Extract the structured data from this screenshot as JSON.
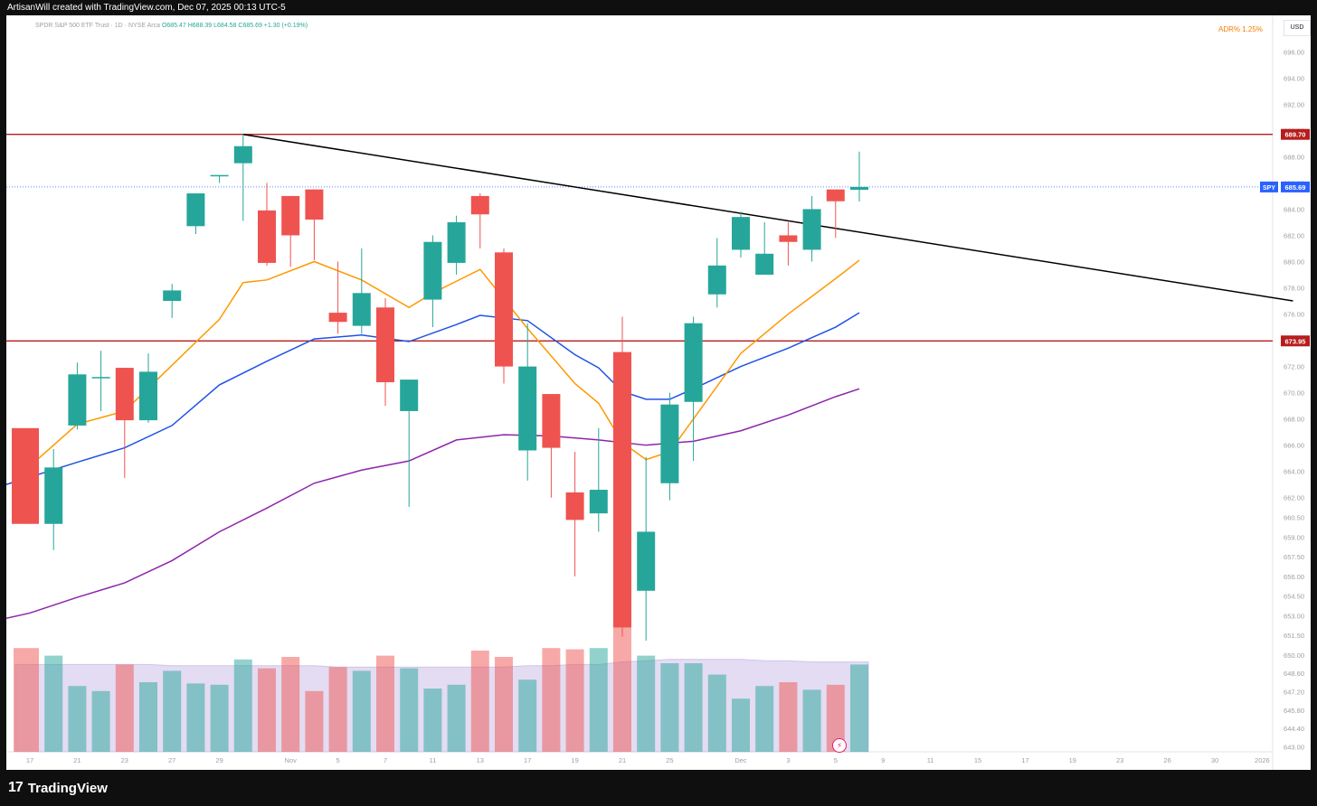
{
  "header": {
    "attribution": "ArtisanWill created with TradingView.com, Dec 07, 2025 00:13 UTC-5"
  },
  "legend": {
    "symbol": "SPDR S&P 500 ETF Trust · 1D · NYSE Arca",
    "ohlc": "O685.47 H688.39 L684.58 C685.69 +1.30 (+0.19%)"
  },
  "adr": "ADR%  1.25%",
  "currency": "USD",
  "branding": {
    "logo_mark": "17",
    "logo_text": "TradingView"
  },
  "colors": {
    "up": "#26a69a",
    "down": "#ef5350",
    "ema_short": "#ff9800",
    "ema_mid": "#1e53e5",
    "sma_long": "#8e24aa",
    "level": "#b71c1c",
    "trendline": "#000000",
    "volume_ma": "#d1c4e9"
  },
  "chart_data": {
    "type": "candlestick",
    "symbol": "SPY",
    "timeframe": "1D",
    "ylim": [
      643.0,
      697.5
    ],
    "yticks": [
      696.0,
      694.0,
      692.0,
      690.0,
      688.0,
      686.0,
      684.0,
      682.0,
      680.0,
      678.0,
      676.0,
      674.0,
      672.0,
      670.0,
      668.0,
      666.0,
      664.0,
      662.0,
      660.5,
      659.0,
      657.5,
      656.0,
      654.5,
      653.0,
      651.5,
      650.0,
      648.6,
      647.2,
      645.8,
      644.4,
      643.0
    ],
    "ytick_labels": [
      "696.00",
      "694.00",
      "692.00",
      "690.00",
      "688.00",
      "686.00",
      "684.00",
      "682.00",
      "680.00",
      "678.00",
      "676.00",
      "674.00",
      "672.00",
      "670.00",
      "668.00",
      "666.00",
      "664.00",
      "662.00",
      "660.50",
      "659.00",
      "657.50",
      "656.00",
      "654.50",
      "653.00",
      "651.50",
      "650.00",
      "648.60",
      "647.20",
      "645.80",
      "644.40",
      "643.00"
    ],
    "x_tick_labels": [
      {
        "label": "17",
        "slot": 0
      },
      {
        "label": "21",
        "slot": 2
      },
      {
        "label": "23",
        "slot": 4
      },
      {
        "label": "27",
        "slot": 6
      },
      {
        "label": "29",
        "slot": 8
      },
      {
        "label": "Nov",
        "slot": 11
      },
      {
        "label": "5",
        "slot": 13
      },
      {
        "label": "7",
        "slot": 15
      },
      {
        "label": "11",
        "slot": 17
      },
      {
        "label": "13",
        "slot": 19
      },
      {
        "label": "17",
        "slot": 21
      },
      {
        "label": "19",
        "slot": 23
      },
      {
        "label": "21",
        "slot": 25
      },
      {
        "label": "25",
        "slot": 27
      },
      {
        "label": "Dec",
        "slot": 30
      },
      {
        "label": "3",
        "slot": 32
      },
      {
        "label": "5",
        "slot": 34
      },
      {
        "label": "9",
        "slot": 36
      },
      {
        "label": "11",
        "slot": 38
      },
      {
        "label": "15",
        "slot": 40
      },
      {
        "label": "17",
        "slot": 42
      },
      {
        "label": "19",
        "slot": 44
      },
      {
        "label": "23",
        "slot": 46
      },
      {
        "label": "26",
        "slot": 48
      },
      {
        "label": "30",
        "slot": 50
      },
      {
        "label": "2026",
        "slot": 52
      }
    ],
    "candles": [
      {
        "o": 667.3,
        "h": 667.3,
        "l": 660.0,
        "c": 660.0
      },
      {
        "o": 660.0,
        "h": 665.7,
        "l": 658.0,
        "c": 664.3
      },
      {
        "o": 667.5,
        "h": 672.3,
        "l": 667.2,
        "c": 671.4
      },
      {
        "o": 671.2,
        "h": 673.2,
        "l": 668.6,
        "c": 671.2
      },
      {
        "o": 671.9,
        "h": 671.9,
        "l": 663.5,
        "c": 667.9
      },
      {
        "o": 667.9,
        "h": 673.0,
        "l": 667.7,
        "c": 671.6
      },
      {
        "o": 677.0,
        "h": 678.3,
        "l": 675.7,
        "c": 677.8
      },
      {
        "o": 682.7,
        "h": 685.2,
        "l": 682.1,
        "c": 685.2
      },
      {
        "o": 686.6,
        "h": 686.6,
        "l": 686.0,
        "c": 686.6
      },
      {
        "o": 687.5,
        "h": 689.7,
        "l": 683.1,
        "c": 688.8
      },
      {
        "o": 683.9,
        "h": 686.0,
        "l": 679.7,
        "c": 679.9
      },
      {
        "o": 685.0,
        "h": 685.0,
        "l": 679.6,
        "c": 682.0
      },
      {
        "o": 685.5,
        "h": 685.5,
        "l": 680.1,
        "c": 683.2
      },
      {
        "o": 676.1,
        "h": 680.0,
        "l": 674.5,
        "c": 675.4
      },
      {
        "o": 675.1,
        "h": 681.0,
        "l": 674.5,
        "c": 677.6
      },
      {
        "o": 676.5,
        "h": 677.2,
        "l": 669.0,
        "c": 670.8
      },
      {
        "o": 668.6,
        "h": 670.9,
        "l": 661.3,
        "c": 671.0
      },
      {
        "o": 677.1,
        "h": 682.0,
        "l": 675.0,
        "c": 681.5
      },
      {
        "o": 679.9,
        "h": 683.5,
        "l": 679.0,
        "c": 683.0
      },
      {
        "o": 685.0,
        "h": 685.2,
        "l": 681.0,
        "c": 683.6
      },
      {
        "o": 680.7,
        "h": 681.0,
        "l": 670.7,
        "c": 672.0
      },
      {
        "o": 665.6,
        "h": 675.3,
        "l": 663.3,
        "c": 672.0
      },
      {
        "o": 669.9,
        "h": 669.9,
        "l": 662.0,
        "c": 665.8
      },
      {
        "o": 662.4,
        "h": 665.5,
        "l": 656.0,
        "c": 660.3
      },
      {
        "o": 660.8,
        "h": 667.3,
        "l": 659.4,
        "c": 662.6
      },
      {
        "o": 673.1,
        "h": 675.8,
        "l": 651.4,
        "c": 652.1
      },
      {
        "o": 654.9,
        "h": 665.1,
        "l": 651.1,
        "c": 659.4
      },
      {
        "o": 663.1,
        "h": 670.0,
        "l": 661.8,
        "c": 669.1
      },
      {
        "o": 669.3,
        "h": 675.8,
        "l": 664.8,
        "c": 675.3
      },
      {
        "o": 677.5,
        "h": 681.8,
        "l": 676.5,
        "c": 679.7
      },
      {
        "o": 680.9,
        "h": 683.8,
        "l": 680.3,
        "c": 683.4
      },
      {
        "o": 679.0,
        "h": 683.0,
        "l": 679.0,
        "c": 680.6
      },
      {
        "o": 682.0,
        "h": 683.0,
        "l": 679.7,
        "c": 681.5
      },
      {
        "o": 680.9,
        "h": 685.0,
        "l": 680.0,
        "c": 684.0
      },
      {
        "o": 685.5,
        "h": 685.5,
        "l": 681.8,
        "c": 684.6
      },
      {
        "o": 685.47,
        "h": 688.39,
        "l": 684.58,
        "c": 685.69
      }
    ],
    "volume": [
      82,
      76,
      52,
      48,
      69,
      55,
      64,
      54,
      53,
      73,
      66,
      75,
      48,
      67,
      64,
      76,
      66,
      50,
      53,
      80,
      75,
      57,
      82,
      81,
      82,
      100,
      76,
      70,
      70,
      61,
      42,
      52,
      55,
      49,
      53,
      69
    ],
    "volume_ma": [
      69,
      69,
      69,
      69,
      69,
      69,
      68,
      68,
      68,
      68,
      68,
      68,
      68,
      67,
      67,
      67,
      67,
      67,
      67,
      67,
      67,
      68,
      68,
      69,
      69,
      71,
      72,
      73,
      73,
      73,
      73,
      72,
      72,
      71,
      71,
      71
    ],
    "ema_short": [
      {
        "slot": 0,
        "v": 664.4
      },
      {
        "slot": 2,
        "v": 667.6
      },
      {
        "slot": 4,
        "v": 668.6
      },
      {
        "slot": 6,
        "v": 672.1
      },
      {
        "slot": 8,
        "v": 675.6
      },
      {
        "slot": 9,
        "v": 678.4
      },
      {
        "slot": 10,
        "v": 678.6
      },
      {
        "slot": 12,
        "v": 680.0
      },
      {
        "slot": 14,
        "v": 678.6
      },
      {
        "slot": 16,
        "v": 676.5
      },
      {
        "slot": 17,
        "v": 677.6
      },
      {
        "slot": 19,
        "v": 679.4
      },
      {
        "slot": 21,
        "v": 674.9
      },
      {
        "slot": 23,
        "v": 670.7
      },
      {
        "slot": 24,
        "v": 669.2
      },
      {
        "slot": 25,
        "v": 666.2
      },
      {
        "slot": 26,
        "v": 664.9
      },
      {
        "slot": 27,
        "v": 665.5
      },
      {
        "slot": 28,
        "v": 668.0
      },
      {
        "slot": 30,
        "v": 673.0
      },
      {
        "slot": 32,
        "v": 676.0
      },
      {
        "slot": 34,
        "v": 678.7
      },
      {
        "slot": 35,
        "v": 680.1
      }
    ],
    "ema_mid": [
      {
        "slot": -1,
        "v": 663.0
      },
      {
        "slot": 2,
        "v": 664.7
      },
      {
        "slot": 4,
        "v": 665.8
      },
      {
        "slot": 6,
        "v": 667.5
      },
      {
        "slot": 8,
        "v": 670.6
      },
      {
        "slot": 10,
        "v": 672.4
      },
      {
        "slot": 12,
        "v": 674.1
      },
      {
        "slot": 14,
        "v": 674.4
      },
      {
        "slot": 16,
        "v": 673.9
      },
      {
        "slot": 18,
        "v": 675.2
      },
      {
        "slot": 19,
        "v": 675.9
      },
      {
        "slot": 21,
        "v": 675.5
      },
      {
        "slot": 23,
        "v": 672.9
      },
      {
        "slot": 24,
        "v": 671.9
      },
      {
        "slot": 25,
        "v": 670.1
      },
      {
        "slot": 26,
        "v": 669.5
      },
      {
        "slot": 27,
        "v": 669.5
      },
      {
        "slot": 28,
        "v": 670.3
      },
      {
        "slot": 30,
        "v": 672.0
      },
      {
        "slot": 32,
        "v": 673.4
      },
      {
        "slot": 34,
        "v": 675.0
      },
      {
        "slot": 35,
        "v": 676.1
      }
    ],
    "sma_long": [
      {
        "slot": -1,
        "v": 652.8
      },
      {
        "slot": 0,
        "v": 653.2
      },
      {
        "slot": 2,
        "v": 654.4
      },
      {
        "slot": 4,
        "v": 655.5
      },
      {
        "slot": 6,
        "v": 657.2
      },
      {
        "slot": 8,
        "v": 659.4
      },
      {
        "slot": 10,
        "v": 661.2
      },
      {
        "slot": 12,
        "v": 663.1
      },
      {
        "slot": 14,
        "v": 664.1
      },
      {
        "slot": 16,
        "v": 664.8
      },
      {
        "slot": 18,
        "v": 666.4
      },
      {
        "slot": 20,
        "v": 666.8
      },
      {
        "slot": 22,
        "v": 666.7
      },
      {
        "slot": 24,
        "v": 666.4
      },
      {
        "slot": 26,
        "v": 666.0
      },
      {
        "slot": 28,
        "v": 666.3
      },
      {
        "slot": 30,
        "v": 667.1
      },
      {
        "slot": 32,
        "v": 668.3
      },
      {
        "slot": 34,
        "v": 669.7
      },
      {
        "slot": 35,
        "v": 670.3
      }
    ],
    "levels": [
      {
        "value": 689.7,
        "label": "689.70"
      },
      {
        "value": 673.95,
        "label": "673.95"
      }
    ],
    "trendline": [
      {
        "slot": 9,
        "v": 689.7
      },
      {
        "slot": 53.3,
        "v": 677.0
      }
    ],
    "last_price": {
      "value": 685.69,
      "tag": "SPY",
      "label": "685.69"
    }
  }
}
